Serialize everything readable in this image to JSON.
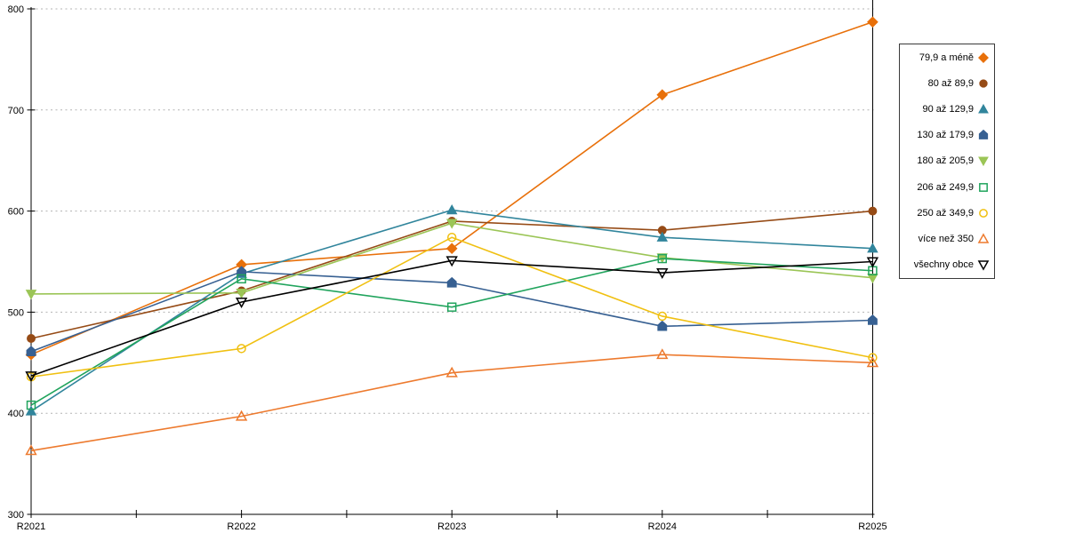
{
  "chart_data": {
    "type": "line",
    "title": "",
    "x_categories": [
      "R2021",
      "R2022",
      "R2023",
      "R2024",
      "R2025"
    ],
    "y_ticks": [
      "300",
      "400",
      "500",
      "600",
      "700",
      "800"
    ],
    "ylim": [
      300,
      800
    ],
    "grid": "horizontal-dashed",
    "legend_position": "right",
    "colors": {
      "grid": "#b3b3b3",
      "axis": "#000000"
    },
    "series": [
      {
        "name": "79,9 a méně",
        "color": "#E8700A",
        "marker": "diamond",
        "style": "filled",
        "values": [
          458,
          547,
          563,
          715,
          787
        ]
      },
      {
        "name": "80 až 89,9",
        "color": "#964B16",
        "marker": "circle",
        "style": "filled",
        "values": [
          474,
          521,
          590,
          581,
          600
        ]
      },
      {
        "name": "90 až 129,9",
        "color": "#31859C",
        "marker": "triangle-up",
        "style": "filled",
        "values": [
          402,
          538,
          601,
          574,
          563
        ]
      },
      {
        "name": "130 až 179,9",
        "color": "#376092",
        "marker": "pentagon",
        "style": "filled",
        "values": [
          461,
          540,
          529,
          486,
          492
        ]
      },
      {
        "name": "180 až 205,9",
        "color": "#9BC556",
        "marker": "triangle-down",
        "style": "filled",
        "values": [
          518,
          519,
          588,
          554,
          534
        ]
      },
      {
        "name": "206 až 249,9",
        "color": "#21A45D",
        "marker": "square",
        "style": "open",
        "values": [
          408,
          533,
          505,
          553,
          541
        ]
      },
      {
        "name": "250 až 349,9",
        "color": "#F0C011",
        "marker": "circle",
        "style": "open",
        "values": [
          436,
          464,
          574,
          496,
          455
        ]
      },
      {
        "name": "více než 350",
        "color": "#ED7A2E",
        "marker": "triangle-up",
        "style": "open",
        "values": [
          363,
          397,
          440,
          458,
          450
        ]
      },
      {
        "name": "všechny obce",
        "color": "#000000",
        "marker": "triangle-down",
        "style": "open",
        "values": [
          437,
          510,
          551,
          539,
          550
        ]
      }
    ]
  }
}
